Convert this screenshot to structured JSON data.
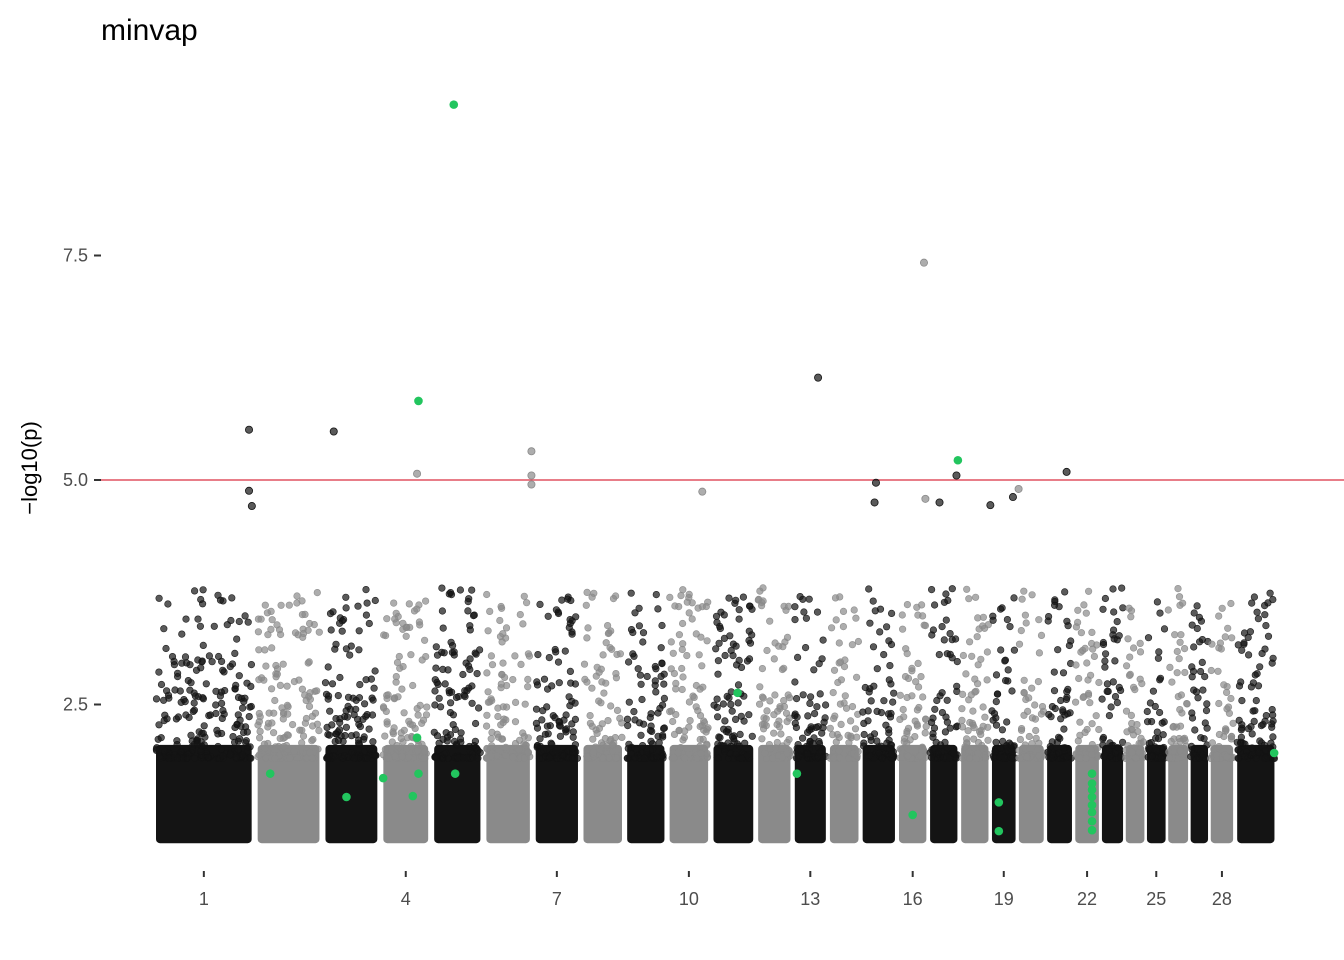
{
  "chart_data": {
    "type": "scatter",
    "title": "minvap",
    "xlabel": "",
    "ylabel": "−log10(p)",
    "ylim": [
      0.8,
      9.4
    ],
    "y_ticks": [
      2.5,
      5.0,
      7.5
    ],
    "y_tick_labels": [
      "2.5",
      "5.0",
      "7.5"
    ],
    "threshold": 5.0,
    "grid": false,
    "legend": "none",
    "x_tick_labels": [
      "1",
      "4",
      "7",
      "10",
      "13",
      "16",
      "19",
      "22",
      "25",
      "28"
    ],
    "x_tick_chromosomes": [
      1,
      4,
      7,
      10,
      13,
      16,
      19,
      22,
      25,
      28
    ],
    "chromosome_count": 29,
    "chromosomes": [
      {
        "chr": 1,
        "start": 0.0,
        "end": 7.2
      },
      {
        "chr": 2,
        "start": 7.2,
        "end": 12.0
      },
      {
        "chr": 3,
        "start": 12.0,
        "end": 16.1
      },
      {
        "chr": 4,
        "start": 16.1,
        "end": 19.7
      },
      {
        "chr": 5,
        "start": 19.7,
        "end": 23.4
      },
      {
        "chr": 6,
        "start": 23.4,
        "end": 26.9
      },
      {
        "chr": 7,
        "start": 26.9,
        "end": 30.3
      },
      {
        "chr": 8,
        "start": 30.3,
        "end": 33.4
      },
      {
        "chr": 9,
        "start": 33.4,
        "end": 36.4
      },
      {
        "chr": 10,
        "start": 36.4,
        "end": 39.5
      },
      {
        "chr": 11,
        "start": 39.5,
        "end": 42.7
      },
      {
        "chr": 12,
        "start": 42.7,
        "end": 45.3
      },
      {
        "chr": 13,
        "start": 45.3,
        "end": 47.8
      },
      {
        "chr": 14,
        "start": 47.8,
        "end": 50.1
      },
      {
        "chr": 15,
        "start": 50.1,
        "end": 52.7
      },
      {
        "chr": 16,
        "start": 52.7,
        "end": 54.9
      },
      {
        "chr": 17,
        "start": 54.9,
        "end": 57.1
      },
      {
        "chr": 18,
        "start": 57.1,
        "end": 59.3
      },
      {
        "chr": 19,
        "start": 59.3,
        "end": 61.2
      },
      {
        "chr": 20,
        "start": 61.2,
        "end": 63.2
      },
      {
        "chr": 21,
        "start": 63.2,
        "end": 65.2
      },
      {
        "chr": 22,
        "start": 65.2,
        "end": 67.1
      },
      {
        "chr": 23,
        "start": 67.1,
        "end": 68.8
      },
      {
        "chr": 24,
        "start": 68.8,
        "end": 70.3
      },
      {
        "chr": 25,
        "start": 70.3,
        "end": 71.8
      },
      {
        "chr": 26,
        "start": 71.8,
        "end": 73.4
      },
      {
        "chr": 27,
        "start": 73.4,
        "end": 74.8
      },
      {
        "chr": 28,
        "start": 74.8,
        "end": 76.6
      },
      {
        "chr": 29,
        "start": 76.6,
        "end": 79.6
      }
    ],
    "colors": {
      "odd": "#141414",
      "even": "#8a8a8a",
      "highlight": "#22c55e",
      "threshold": "#e05261",
      "axis": "#4d4d4d"
    },
    "series": [
      {
        "role": "highlighted SNPs",
        "color": "#22c55e",
        "points": [
          [
            21.3,
            9.18
          ],
          [
            18.8,
            5.88
          ],
          [
            57.0,
            5.22
          ],
          [
            41.4,
            2.63
          ],
          [
            8.3,
            1.73
          ],
          [
            13.7,
            1.47
          ],
          [
            16.3,
            1.68
          ],
          [
            18.4,
            1.48
          ],
          [
            18.7,
            2.13
          ],
          [
            18.8,
            1.73
          ],
          [
            21.4,
            1.73
          ],
          [
            45.6,
            1.73
          ],
          [
            53.8,
            1.27
          ],
          [
            59.9,
            1.41
          ],
          [
            59.9,
            1.09
          ],
          [
            66.5,
            1.73
          ],
          [
            66.5,
            1.62
          ],
          [
            66.5,
            1.55
          ],
          [
            66.5,
            1.47
          ],
          [
            66.5,
            1.38
          ],
          [
            66.5,
            1.3
          ],
          [
            66.5,
            1.2
          ],
          [
            66.5,
            1.1
          ],
          [
            79.4,
            1.96
          ]
        ]
      },
      {
        "role": "top SNPs",
        "points": [
          [
            54.6,
            7.42
          ],
          [
            47.1,
            6.14
          ],
          [
            6.8,
            5.56
          ],
          [
            12.8,
            5.54
          ],
          [
            26.8,
            5.32
          ],
          [
            18.7,
            5.07
          ],
          [
            26.8,
            5.05
          ],
          [
            26.8,
            4.95
          ],
          [
            56.9,
            5.05
          ],
          [
            64.7,
            5.09
          ],
          [
            51.2,
            4.97
          ],
          [
            51.1,
            4.75
          ],
          [
            6.8,
            4.88
          ],
          [
            7.0,
            4.71
          ],
          [
            54.7,
            4.79
          ],
          [
            55.7,
            4.75
          ],
          [
            38.9,
            4.87
          ],
          [
            59.3,
            4.72
          ],
          [
            61.3,
            4.9
          ],
          [
            60.9,
            4.81
          ]
        ]
      }
    ]
  }
}
